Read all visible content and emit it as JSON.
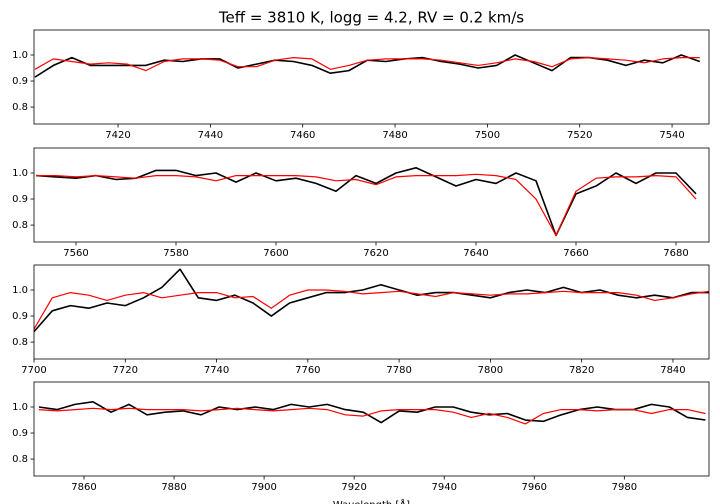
{
  "chart_data": [
    {
      "type": "line",
      "title": "Teff = 3810 K, logg = 4.2, RV = 0.2 km/s",
      "x": [
        7402,
        7406,
        7410,
        7414,
        7418,
        7422,
        7426,
        7430,
        7434,
        7438,
        7442,
        7446,
        7450,
        7454,
        7458,
        7462,
        7466,
        7470,
        7474,
        7478,
        7482,
        7486,
        7490,
        7494,
        7498,
        7502,
        7506,
        7510,
        7514,
        7518,
        7522,
        7526,
        7530,
        7534,
        7538,
        7542,
        7546
      ],
      "series": [
        {
          "color": "#000000",
          "values": [
            0.915,
            0.96,
            0.99,
            0.96,
            0.96,
            0.96,
            0.96,
            0.98,
            0.975,
            0.985,
            0.985,
            0.95,
            0.965,
            0.98,
            0.975,
            0.96,
            0.93,
            0.94,
            0.98,
            0.975,
            0.985,
            0.99,
            0.975,
            0.965,
            0.95,
            0.96,
            1.0,
            0.97,
            0.94,
            0.99,
            0.99,
            0.98,
            0.96,
            0.98,
            0.97,
            1.0,
            0.975
          ]
        },
        {
          "color": "#ff0000",
          "values": [
            0.945,
            0.985,
            0.975,
            0.965,
            0.97,
            0.965,
            0.94,
            0.975,
            0.985,
            0.985,
            0.98,
            0.955,
            0.955,
            0.98,
            0.99,
            0.985,
            0.945,
            0.96,
            0.98,
            0.985,
            0.985,
            0.985,
            0.98,
            0.97,
            0.96,
            0.97,
            0.985,
            0.975,
            0.955,
            0.985,
            0.99,
            0.985,
            0.98,
            0.97,
            0.985,
            0.99,
            0.99
          ]
        }
      ],
      "xlim": [
        7401.8,
        7548
      ],
      "xticks": [
        7420,
        7440,
        7460,
        7480,
        7500,
        7520,
        7540
      ],
      "ylim": [
        0.735,
        1.096
      ],
      "yticks": [
        0.8,
        0.9,
        {
          "value": 1,
          "label": "1.0"
        }
      ]
    },
    {
      "type": "line",
      "x": [
        7552,
        7556,
        7560,
        7564,
        7568,
        7572,
        7576,
        7580,
        7584,
        7588,
        7592,
        7596,
        7600,
        7604,
        7608,
        7612,
        7616,
        7620,
        7624,
        7628,
        7632,
        7636,
        7640,
        7644,
        7648,
        7652,
        7656,
        7660,
        7664,
        7668,
        7672,
        7676,
        7680,
        7684
      ],
      "series": [
        {
          "color": "#000000",
          "values": [
            0.99,
            0.985,
            0.98,
            0.99,
            0.975,
            0.98,
            1.01,
            1.01,
            0.99,
            1.0,
            0.965,
            1.0,
            0.97,
            0.98,
            0.96,
            0.93,
            0.99,
            0.96,
            1.0,
            1.02,
            0.985,
            0.95,
            0.975,
            0.96,
            1.0,
            0.97,
            0.76,
            0.92,
            0.95,
            1.0,
            0.96,
            1.0,
            1.0,
            0.92
          ]
        },
        {
          "color": "#ff0000",
          "values": [
            0.99,
            0.99,
            0.985,
            0.99,
            0.985,
            0.98,
            0.99,
            0.99,
            0.985,
            0.97,
            0.99,
            0.99,
            0.99,
            0.99,
            0.985,
            0.97,
            0.975,
            0.955,
            0.985,
            0.99,
            0.99,
            0.99,
            0.995,
            0.99,
            0.975,
            0.9,
            0.76,
            0.93,
            0.98,
            0.985,
            0.985,
            0.99,
            0.985,
            0.9
          ]
        }
      ],
      "xlim": [
        7551.6,
        7686.6
      ],
      "xticks": [
        7560,
        7580,
        7600,
        7620,
        7640,
        7660,
        7680
      ],
      "ylim": [
        0.735,
        1.096
      ],
      "yticks": [
        0.8,
        0.9,
        {
          "value": 1,
          "label": "1.0"
        }
      ]
    },
    {
      "type": "line",
      "x": [
        7700,
        7704,
        7708,
        7712,
        7716,
        7720,
        7724,
        7728,
        7732,
        7736,
        7740,
        7744,
        7748,
        7752,
        7756,
        7760,
        7764,
        7768,
        7772,
        7776,
        7780,
        7784,
        7788,
        7792,
        7796,
        7800,
        7804,
        7808,
        7812,
        7816,
        7820,
        7824,
        7828,
        7832,
        7836,
        7840,
        7844,
        7848
      ],
      "series": [
        {
          "color": "#000000",
          "values": [
            0.84,
            0.92,
            0.94,
            0.93,
            0.95,
            0.94,
            0.97,
            1.01,
            1.08,
            0.97,
            0.96,
            0.98,
            0.95,
            0.9,
            0.95,
            0.97,
            0.99,
            0.99,
            1.0,
            1.02,
            1.0,
            0.98,
            0.99,
            0.99,
            0.98,
            0.97,
            0.99,
            1.0,
            0.99,
            1.01,
            0.99,
            1.0,
            0.98,
            0.97,
            0.98,
            0.97,
            0.99,
            0.99
          ]
        },
        {
          "color": "#ff0000",
          "values": [
            0.85,
            0.97,
            0.99,
            0.98,
            0.96,
            0.98,
            0.99,
            0.97,
            0.98,
            0.99,
            0.99,
            0.97,
            0.975,
            0.93,
            0.98,
            1.0,
            1.0,
            0.995,
            0.985,
            0.99,
            0.995,
            0.985,
            0.975,
            0.99,
            0.985,
            0.98,
            0.985,
            0.985,
            0.99,
            0.995,
            0.99,
            0.99,
            0.99,
            0.98,
            0.96,
            0.97,
            0.985,
            0.995
          ]
        }
      ],
      "xlim": [
        7700,
        7847.9
      ],
      "xticks": [
        7700,
        7720,
        7740,
        7760,
        7780,
        7800,
        7820,
        7840
      ],
      "ylim": [
        0.735,
        1.096
      ],
      "yticks": [
        0.8,
        0.9,
        {
          "value": 1,
          "label": "1.0"
        }
      ]
    },
    {
      "type": "line",
      "xlabel": "Wavelength [Å]",
      "x": [
        7850,
        7854,
        7858,
        7862,
        7866,
        7870,
        7874,
        7878,
        7882,
        7886,
        7890,
        7894,
        7898,
        7902,
        7906,
        7910,
        7914,
        7918,
        7922,
        7926,
        7930,
        7934,
        7938,
        7942,
        7946,
        7950,
        7954,
        7958,
        7962,
        7966,
        7970,
        7974,
        7978,
        7982,
        7986,
        7990,
        7994,
        7998
      ],
      "series": [
        {
          "color": "#000000",
          "values": [
            1.0,
            0.99,
            1.01,
            1.02,
            0.98,
            1.01,
            0.97,
            0.98,
            0.985,
            0.97,
            1.0,
            0.99,
            1.0,
            0.99,
            1.01,
            1.0,
            1.01,
            0.99,
            0.98,
            0.94,
            0.985,
            0.98,
            1.0,
            1.0,
            0.98,
            0.97,
            0.975,
            0.95,
            0.945,
            0.97,
            0.99,
            1.0,
            0.99,
            0.99,
            1.01,
            1.0,
            0.96,
            0.95
          ]
        },
        {
          "color": "#ff0000",
          "values": [
            0.99,
            0.985,
            0.99,
            0.995,
            0.99,
            0.995,
            0.99,
            0.99,
            0.99,
            0.985,
            0.99,
            0.995,
            0.99,
            0.985,
            0.99,
            0.995,
            0.99,
            0.97,
            0.965,
            0.985,
            0.99,
            0.99,
            0.99,
            0.98,
            0.96,
            0.975,
            0.96,
            0.935,
            0.975,
            0.99,
            0.99,
            0.985,
            0.99,
            0.99,
            0.975,
            0.99,
            0.99,
            0.975
          ]
        }
      ],
      "xlim": [
        7848.9,
        7998.8
      ],
      "xticks": [
        7860,
        7880,
        7900,
        7920,
        7940,
        7960,
        7980
      ],
      "ylim": [
        0.735,
        1.096
      ],
      "yticks": [
        0.8,
        0.9,
        {
          "value": 1,
          "label": "1.0"
        }
      ]
    }
  ]
}
